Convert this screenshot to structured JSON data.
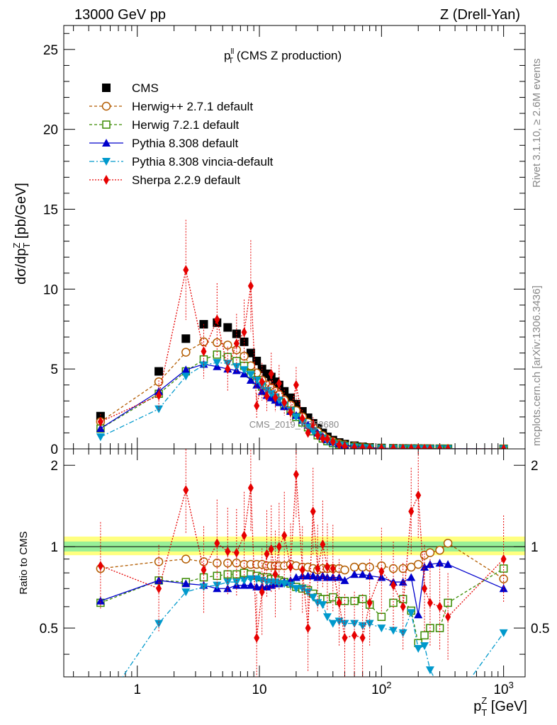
{
  "header": {
    "left": "13000 GeV pp",
    "right": "Z (Drell-Yan)",
    "plot_title": "p",
    "plot_title_sup": "ll",
    "plot_title_sub": "T",
    "plot_title_rest": " (CMS Z production)",
    "watermark": "CMS_2019_I1753680"
  },
  "side_text": {
    "rivet": "Rivet 3.1.10, ≥ 2.6M events",
    "mcplots": "mcplots.cern.ch [arXiv:1306.3436]"
  },
  "axes": {
    "y_main_label": "dσ/dp",
    "y_main_label_sub": "T",
    "y_main_label_sup": "Z",
    "y_main_label_unit": " [pb/GeV]",
    "y_ratio_label": "Ratio to CMS",
    "x_label": "p",
    "x_label_sub": "T",
    "x_label_sup": "Z",
    "x_label_unit": " [GeV]",
    "main_yticks": [
      "0",
      "5",
      "10",
      "15",
      "20",
      "25"
    ],
    "ratio_yticks": [
      "0.5",
      "1",
      "2"
    ],
    "xticks": [
      "1",
      "10",
      "10",
      "10"
    ],
    "xtick_sups": [
      "",
      "",
      "2",
      "3"
    ]
  },
  "chart_data": {
    "type": "scatter",
    "x_scale": "log",
    "xlim": [
      0.25,
      1500
    ],
    "ylim_main": [
      0,
      26.5
    ],
    "ylim_ratio": [
      0.33,
      2.3
    ],
    "ratio_scale": "log",
    "x": [
      0.5,
      1.5,
      2.5,
      3.5,
      4.5,
      5.5,
      6.5,
      7.5,
      8.5,
      9.5,
      10.5,
      11.5,
      12.5,
      13.5,
      14.5,
      16,
      18,
      20,
      22.5,
      25,
      27.5,
      30,
      33,
      36,
      40,
      45,
      50,
      60,
      70,
      80,
      100,
      125,
      150,
      175,
      200,
      225,
      250,
      300,
      350,
      1000
    ],
    "series": [
      {
        "name": "CMS",
        "color": "#000000",
        "values": [
          2.05,
          4.85,
          6.9,
          7.8,
          7.9,
          7.6,
          7.2,
          6.7,
          6.0,
          5.5,
          5.0,
          4.7,
          4.5,
          4.2,
          4.0,
          3.6,
          3.2,
          2.8,
          2.35,
          1.95,
          1.6,
          1.3,
          1.0,
          0.75,
          0.55,
          0.4,
          0.3,
          0.2,
          0.13,
          0.09,
          0.055,
          0.035,
          0.025,
          0.018,
          0.014,
          0.011,
          0.009,
          0.007,
          0.005,
          0.002
        ]
      },
      {
        "name": "Herwig++ 2.7.1 default",
        "color": "#b35c00",
        "values": [
          1.7,
          4.2,
          6.05,
          6.7,
          6.65,
          6.5,
          6.2,
          5.8,
          5.2,
          4.75,
          4.3,
          4.0,
          3.8,
          3.6,
          3.4,
          3.05,
          2.75,
          2.4,
          2.0,
          1.65,
          1.35,
          1.08,
          0.83,
          0.62,
          0.46,
          0.33,
          0.25,
          0.17,
          0.11,
          0.075,
          0.047,
          0.029,
          0.021,
          0.015,
          0.012,
          0.009,
          0.008,
          0.006,
          0.0055,
          0.0017
        ],
        "ratio": [
          0.83,
          0.88,
          0.9,
          0.88,
          0.87,
          0.87,
          0.87,
          0.86,
          0.86,
          0.86,
          0.86,
          0.85,
          0.85,
          0.85,
          0.85,
          0.85,
          0.86,
          0.85,
          0.84,
          0.84,
          0.83,
          0.82,
          0.83,
          0.83,
          0.83,
          0.83,
          0.82,
          0.84,
          0.84,
          0.84,
          0.85,
          0.83,
          0.83,
          0.84,
          0.86,
          0.93,
          0.95,
          0.97,
          1.03,
          0.76
        ]
      },
      {
        "name": "Herwig 7.2.1 default",
        "color": "#3a8a00",
        "values": [
          1.27,
          3.45,
          4.85,
          5.6,
          5.9,
          5.75,
          5.5,
          5.2,
          4.7,
          4.3,
          3.9,
          3.6,
          3.4,
          3.2,
          3.0,
          2.7,
          2.4,
          2.0,
          1.65,
          1.35,
          1.1,
          0.85,
          0.65,
          0.48,
          0.36,
          0.26,
          0.19,
          0.13,
          0.085,
          0.058,
          0.036,
          0.022,
          0.016,
          0.012,
          0.009,
          0.0075,
          0.006,
          0.005,
          0.004,
          0.0017
        ],
        "ratio": [
          0.62,
          0.75,
          0.74,
          0.77,
          0.78,
          0.79,
          0.79,
          0.8,
          0.79,
          0.78,
          0.77,
          0.77,
          0.76,
          0.76,
          0.75,
          0.74,
          0.73,
          0.71,
          0.7,
          0.69,
          0.67,
          0.65,
          0.64,
          0.64,
          0.65,
          0.63,
          0.63,
          0.63,
          0.64,
          0.61,
          0.55,
          0.62,
          0.64,
          0.58,
          0.44,
          0.47,
          0.5,
          0.5,
          0.62,
          0.83
        ]
      },
      {
        "name": "Pythia 8.308 default",
        "color": "#0000cc",
        "values": [
          1.28,
          3.6,
          4.95,
          5.3,
          5.15,
          5.0,
          4.9,
          4.7,
          4.3,
          4.0,
          3.6,
          3.35,
          3.2,
          3.05,
          2.9,
          2.65,
          2.35,
          2.1,
          1.8,
          1.5,
          1.25,
          1.0,
          0.78,
          0.58,
          0.43,
          0.31,
          0.23,
          0.16,
          0.1,
          0.07,
          0.043,
          0.026,
          0.019,
          0.014,
          0.01,
          0.0085,
          0.007,
          0.006,
          0.0043,
          0.0014
        ],
        "ratio": [
          0.63,
          0.75,
          0.73,
          0.72,
          0.7,
          0.7,
          0.72,
          0.72,
          0.72,
          0.71,
          0.71,
          0.71,
          0.72,
          0.73,
          0.73,
          0.74,
          0.75,
          0.77,
          0.78,
          0.78,
          0.78,
          0.77,
          0.78,
          0.77,
          0.77,
          0.77,
          0.75,
          0.79,
          0.79,
          0.78,
          0.77,
          0.74,
          0.74,
          0.77,
          0.56,
          0.84,
          0.86,
          0.87,
          0.86,
          0.7
        ]
      },
      {
        "name": "Pythia 8.308 vincia-default",
        "color": "#0099cc",
        "values": [
          0.75,
          2.5,
          4.55,
          5.25,
          5.4,
          5.35,
          5.15,
          4.95,
          4.65,
          4.3,
          3.95,
          3.65,
          3.45,
          3.25,
          3.05,
          2.75,
          2.4,
          2.0,
          1.65,
          1.35,
          1.1,
          0.85,
          0.64,
          0.47,
          0.33,
          0.24,
          0.17,
          0.11,
          0.07,
          0.048,
          0.029,
          0.017,
          0.012,
          0.01,
          0.0062,
          0.005,
          0.004,
          0.0032,
          0.0023,
          0.0011
        ],
        "ratio": [
          0.25,
          0.52,
          0.68,
          0.71,
          0.72,
          0.74,
          0.74,
          0.75,
          0.76,
          0.76,
          0.75,
          0.74,
          0.74,
          0.74,
          0.73,
          0.73,
          0.72,
          0.7,
          0.7,
          0.68,
          0.65,
          0.62,
          0.61,
          0.55,
          0.52,
          0.53,
          0.52,
          0.52,
          0.51,
          0.52,
          0.5,
          0.49,
          0.48,
          0.57,
          0.42,
          0.43,
          0.35,
          0.3,
          0.25,
          0.48
        ]
      },
      {
        "name": "Sherpa 2.2.9 default",
        "color": "#e60000",
        "values": [
          1.7,
          3.35,
          11.2,
          6.1,
          8.1,
          5.0,
          6.6,
          7.3,
          10.2,
          2.7,
          4.2,
          3.3,
          4.7,
          3.2,
          4.1,
          2.9,
          2.3,
          4.0,
          1.9,
          1.0,
          1.55,
          0.85,
          0.65,
          0.62,
          0.45,
          0.25,
          0.15,
          0.09,
          0.06,
          0.05,
          0.03,
          0.025,
          0.016,
          0.02,
          0.012,
          0.009,
          0.0075,
          0.006,
          0.004,
          0.0017
        ],
        "ratio": [
          0.85,
          0.7,
          1.62,
          0.82,
          1.03,
          0.96,
          0.95,
          1.1,
          1.65,
          0.46,
          0.68,
          0.94,
          0.98,
          0.79,
          1.0,
          1.1,
          0.84,
          1.85,
          0.82,
          0.5,
          1.35,
          0.83,
          1.02,
          0.84,
          0.83,
          0.62,
          0.46,
          0.47,
          0.46,
          0.62,
          0.81,
          0.72,
          0.6,
          1.35,
          1.55,
          0.7,
          0.62,
          0.6,
          0.55,
          0.9
        ]
      }
    ],
    "legend_placement": "top-left",
    "grid": false
  }
}
